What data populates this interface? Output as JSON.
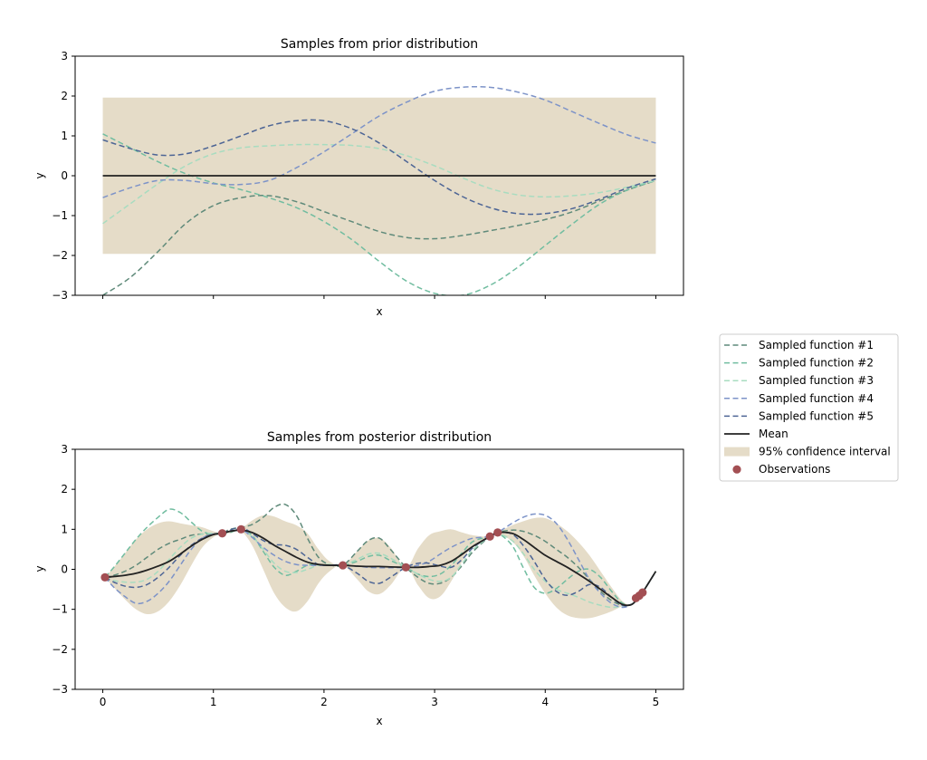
{
  "figure": {
    "width": 1024,
    "height": 839
  },
  "colors": {
    "band": "#e5dcc8",
    "mean": "#222222",
    "observation": "#a34f53",
    "series": [
      "#5f8a7a",
      "#71bda0",
      "#a8dcc0",
      "#7d93c8",
      "#4d6595"
    ]
  },
  "legend": {
    "items": [
      {
        "label": "Sampled function #1",
        "kind": "dashed",
        "color_index": 0
      },
      {
        "label": "Sampled function #2",
        "kind": "dashed",
        "color_index": 1
      },
      {
        "label": "Sampled function #3",
        "kind": "dashed",
        "color_index": 2
      },
      {
        "label": "Sampled function #4",
        "kind": "dashed",
        "color_index": 3
      },
      {
        "label": "Sampled function #5",
        "kind": "dashed",
        "color_index": 4
      },
      {
        "label": "Mean",
        "kind": "solid"
      },
      {
        "label": "95% confidence interval",
        "kind": "patch"
      },
      {
        "label": "Observations",
        "kind": "marker"
      }
    ]
  },
  "chart_data": [
    {
      "type": "line",
      "title": "Samples from prior distribution",
      "xlabel": "x",
      "ylabel": "y",
      "xlim": [
        -0.25,
        5.25
      ],
      "ylim": [
        -3,
        3
      ],
      "x_ticks": [
        0,
        1,
        2,
        3,
        4,
        5
      ],
      "x_tick_labels_visible": false,
      "y_ticks": [
        -3,
        -2,
        -1,
        0,
        1,
        2,
        3
      ],
      "x": [
        0,
        0.25,
        0.5,
        0.75,
        1,
        1.25,
        1.5,
        1.75,
        2,
        2.25,
        2.5,
        2.75,
        3,
        3.25,
        3.5,
        3.75,
        4,
        4.25,
        4.5,
        4.75,
        5
      ],
      "mean": [
        0,
        0,
        0,
        0,
        0,
        0,
        0,
        0,
        0,
        0,
        0,
        0,
        0,
        0,
        0,
        0,
        0,
        0,
        0,
        0,
        0
      ],
      "band_lower": [
        -1.96,
        -1.96,
        -1.96,
        -1.96,
        -1.96,
        -1.96,
        -1.96,
        -1.96,
        -1.96,
        -1.96,
        -1.96,
        -1.96,
        -1.96,
        -1.96,
        -1.96,
        -1.96,
        -1.96,
        -1.96,
        -1.96,
        -1.96,
        -1.96
      ],
      "band_upper": [
        1.96,
        1.96,
        1.96,
        1.96,
        1.96,
        1.96,
        1.96,
        1.96,
        1.96,
        1.96,
        1.96,
        1.96,
        1.96,
        1.96,
        1.96,
        1.96,
        1.96,
        1.96,
        1.96,
        1.96,
        1.96
      ],
      "series": [
        {
          "name": "Sampled function #1",
          "values": [
            -3.0,
            -2.55,
            -1.9,
            -1.2,
            -0.75,
            -0.55,
            -0.5,
            -0.65,
            -0.9,
            -1.15,
            -1.4,
            -1.55,
            -1.58,
            -1.5,
            -1.38,
            -1.25,
            -1.1,
            -0.9,
            -0.62,
            -0.35,
            -0.12
          ]
        },
        {
          "name": "Sampled function #2",
          "values": [
            1.05,
            0.7,
            0.35,
            0.05,
            -0.18,
            -0.35,
            -0.55,
            -0.8,
            -1.15,
            -1.6,
            -2.15,
            -2.65,
            -2.95,
            -3.0,
            -2.75,
            -2.3,
            -1.75,
            -1.2,
            -0.7,
            -0.35,
            -0.12
          ]
        },
        {
          "name": "Sampled function #3",
          "values": [
            -1.2,
            -0.7,
            -0.2,
            0.25,
            0.55,
            0.7,
            0.75,
            0.78,
            0.78,
            0.76,
            0.68,
            0.5,
            0.25,
            -0.05,
            -0.32,
            -0.48,
            -0.53,
            -0.5,
            -0.42,
            -0.28,
            -0.12
          ]
        },
        {
          "name": "Sampled function #4",
          "values": [
            -0.55,
            -0.3,
            -0.12,
            -0.12,
            -0.2,
            -0.22,
            -0.12,
            0.2,
            0.6,
            1.05,
            1.5,
            1.85,
            2.12,
            2.22,
            2.22,
            2.1,
            1.9,
            1.6,
            1.3,
            1.02,
            0.82
          ]
        },
        {
          "name": "Sampled function #5",
          "values": [
            0.9,
            0.68,
            0.52,
            0.55,
            0.75,
            1.0,
            1.25,
            1.38,
            1.38,
            1.18,
            0.82,
            0.35,
            -0.12,
            -0.52,
            -0.8,
            -0.95,
            -0.95,
            -0.82,
            -0.58,
            -0.3,
            -0.08
          ]
        }
      ]
    },
    {
      "type": "line",
      "title": "Samples from posterior distribution",
      "xlabel": "x",
      "ylabel": "y",
      "xlim": [
        -0.25,
        5.25
      ],
      "ylim": [
        -3,
        3
      ],
      "x_ticks": [
        0,
        1,
        2,
        3,
        4,
        5
      ],
      "x_tick_labels_visible": true,
      "y_ticks": [
        -3,
        -2,
        -1,
        0,
        1,
        2,
        3
      ],
      "x": [
        0.02,
        0.1,
        0.2,
        0.3,
        0.4,
        0.5,
        0.6,
        0.7,
        0.8,
        0.9,
        1.0,
        1.08,
        1.15,
        1.25,
        1.35,
        1.45,
        1.55,
        1.65,
        1.75,
        1.85,
        1.95,
        2.05,
        2.17,
        2.3,
        2.4,
        2.5,
        2.6,
        2.74,
        2.85,
        2.95,
        3.05,
        3.15,
        3.25,
        3.35,
        3.5,
        3.57,
        3.7,
        3.8,
        3.9,
        4.0,
        4.1,
        4.2,
        4.3,
        4.4,
        4.5,
        4.6,
        4.7,
        4.78,
        4.84,
        4.88,
        5.0
      ],
      "mean": [
        -0.2,
        -0.18,
        -0.15,
        -0.1,
        -0.02,
        0.08,
        0.2,
        0.38,
        0.58,
        0.75,
        0.87,
        0.9,
        0.95,
        0.98,
        0.92,
        0.78,
        0.6,
        0.45,
        0.3,
        0.18,
        0.12,
        0.1,
        0.1,
        0.08,
        0.07,
        0.07,
        0.06,
        0.05,
        0.05,
        0.07,
        0.1,
        0.2,
        0.38,
        0.58,
        0.82,
        0.92,
        0.9,
        0.75,
        0.55,
        0.35,
        0.2,
        0.05,
        -0.12,
        -0.3,
        -0.5,
        -0.7,
        -0.88,
        -0.88,
        -0.72,
        -0.58,
        -0.05
      ],
      "band_lower": [
        -0.2,
        -0.45,
        -0.75,
        -1.0,
        -1.12,
        -1.05,
        -0.8,
        -0.4,
        0.1,
        0.55,
        0.8,
        0.9,
        0.9,
        0.95,
        0.6,
        0.0,
        -0.6,
        -0.95,
        -1.05,
        -0.8,
        -0.35,
        -0.05,
        0.1,
        -0.25,
        -0.55,
        -0.62,
        -0.4,
        0.05,
        -0.4,
        -0.72,
        -0.68,
        -0.3,
        0.2,
        0.6,
        0.82,
        0.9,
        0.7,
        0.35,
        -0.15,
        -0.6,
        -0.95,
        -1.15,
        -1.22,
        -1.22,
        -1.15,
        -1.05,
        -0.92,
        -0.88,
        -0.72,
        -0.58,
        -0.05
      ],
      "band_upper": [
        -0.2,
        0.05,
        0.4,
        0.75,
        1.0,
        1.15,
        1.2,
        1.15,
        1.1,
        1.05,
        0.95,
        0.9,
        0.98,
        1.02,
        1.22,
        1.35,
        1.32,
        1.2,
        1.1,
        0.9,
        0.5,
        0.2,
        0.1,
        0.45,
        0.72,
        0.78,
        0.55,
        0.05,
        0.52,
        0.85,
        0.95,
        1.0,
        0.92,
        0.85,
        0.82,
        0.92,
        1.1,
        1.2,
        1.28,
        1.28,
        1.15,
        0.95,
        0.68,
        0.35,
        -0.05,
        -0.45,
        -0.8,
        -0.88,
        -0.72,
        -0.58,
        -0.05
      ],
      "series": [
        {
          "name": "Sampled function #1",
          "values": [
            -0.2,
            -0.15,
            -0.05,
            0.1,
            0.3,
            0.5,
            0.65,
            0.75,
            0.85,
            0.88,
            0.88,
            0.9,
            1.0,
            1.05,
            1.12,
            1.3,
            1.55,
            1.62,
            1.35,
            0.78,
            0.3,
            0.12,
            0.1,
            0.45,
            0.72,
            0.78,
            0.5,
            0.05,
            -0.2,
            -0.35,
            -0.35,
            -0.2,
            0.1,
            0.45,
            0.82,
            0.92,
            0.98,
            0.95,
            0.85,
            0.7,
            0.5,
            0.3,
            0.05,
            -0.25,
            -0.55,
            -0.78,
            -0.9,
            -0.88,
            -0.72,
            -0.58,
            -0.05
          ]
        },
        {
          "name": "Sampled function #2",
          "values": [
            -0.2,
            0.05,
            0.4,
            0.75,
            1.05,
            1.3,
            1.5,
            1.42,
            1.18,
            0.95,
            0.88,
            0.9,
            0.92,
            1.0,
            0.85,
            0.45,
            0.05,
            -0.15,
            -0.05,
            0.1,
            0.12,
            0.11,
            0.1,
            0.2,
            0.32,
            0.35,
            0.22,
            0.05,
            -0.12,
            -0.18,
            -0.12,
            0.1,
            0.42,
            0.7,
            0.82,
            0.9,
            0.6,
            0.05,
            -0.45,
            -0.6,
            -0.48,
            -0.25,
            -0.05,
            0.0,
            -0.2,
            -0.55,
            -0.85,
            -0.88,
            -0.72,
            -0.58,
            -0.05
          ]
        },
        {
          "name": "Sampled function #3",
          "values": [
            -0.2,
            -0.28,
            -0.32,
            -0.32,
            -0.25,
            -0.05,
            0.25,
            0.55,
            0.78,
            0.88,
            0.9,
            0.9,
            0.95,
            0.98,
            0.82,
            0.5,
            0.15,
            -0.05,
            -0.08,
            0.0,
            0.1,
            0.12,
            0.1,
            0.25,
            0.38,
            0.4,
            0.28,
            0.05,
            -0.12,
            -0.25,
            -0.3,
            -0.2,
            0.15,
            0.5,
            0.82,
            0.9,
            0.72,
            0.4,
            0.0,
            -0.3,
            -0.5,
            -0.6,
            -0.7,
            -0.82,
            -0.9,
            -0.95,
            -0.92,
            -0.88,
            -0.72,
            -0.58,
            -0.05
          ]
        },
        {
          "name": "Sampled function #4",
          "values": [
            -0.2,
            -0.45,
            -0.68,
            -0.85,
            -0.8,
            -0.6,
            -0.3,
            0.1,
            0.5,
            0.78,
            0.88,
            0.9,
            0.95,
            1.0,
            0.8,
            0.55,
            0.35,
            0.2,
            0.12,
            0.1,
            0.1,
            0.1,
            0.1,
            0.08,
            0.05,
            0.04,
            0.04,
            0.05,
            0.1,
            0.2,
            0.38,
            0.55,
            0.68,
            0.78,
            0.82,
            0.92,
            1.15,
            1.3,
            1.38,
            1.35,
            1.15,
            0.75,
            0.25,
            -0.25,
            -0.6,
            -0.85,
            -0.95,
            -0.88,
            -0.72,
            -0.58,
            -0.05
          ]
        },
        {
          "name": "Sampled function #5",
          "values": [
            -0.2,
            -0.32,
            -0.42,
            -0.45,
            -0.38,
            -0.2,
            0.05,
            0.35,
            0.6,
            0.78,
            0.88,
            0.9,
            0.98,
            1.05,
            0.9,
            0.72,
            0.62,
            0.6,
            0.5,
            0.3,
            0.12,
            0.1,
            0.1,
            -0.1,
            -0.3,
            -0.35,
            -0.2,
            0.05,
            0.15,
            0.15,
            0.08,
            0.05,
            0.25,
            0.55,
            0.82,
            0.92,
            0.88,
            0.6,
            0.2,
            -0.25,
            -0.55,
            -0.65,
            -0.55,
            -0.38,
            -0.45,
            -0.7,
            -0.9,
            -0.88,
            -0.72,
            -0.58,
            -0.05
          ]
        }
      ],
      "observations": {
        "x": [
          0.02,
          1.08,
          1.25,
          2.17,
          2.74,
          3.5,
          3.57,
          4.82,
          4.85,
          4.88
        ],
        "y": [
          -0.2,
          0.9,
          1.0,
          0.1,
          0.05,
          0.82,
          0.92,
          -0.72,
          -0.66,
          -0.58
        ]
      }
    }
  ]
}
